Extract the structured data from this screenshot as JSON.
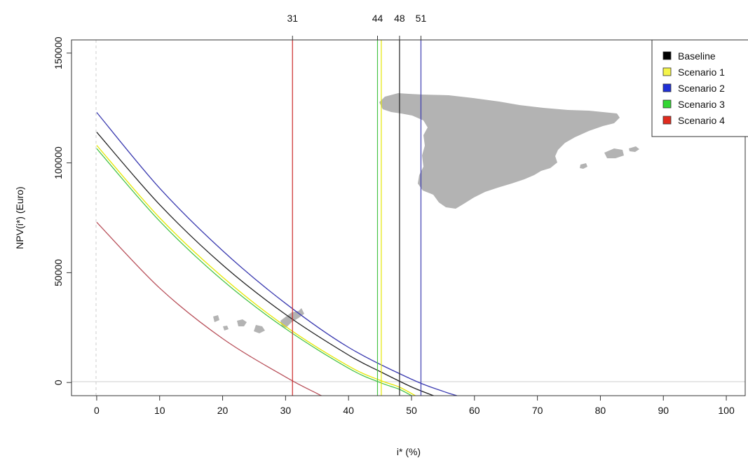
{
  "chart_data": {
    "type": "line",
    "xlabel": "i* (%)",
    "ylabel": "NPV(i*) (Euro)",
    "xlim": [
      -4,
      103
    ],
    "ylim": [
      -6000,
      156000
    ],
    "x_ticks": [
      0,
      10,
      20,
      30,
      40,
      50,
      60,
      70,
      80,
      90,
      100
    ],
    "y_ticks": [
      0,
      50000,
      100000,
      150000
    ],
    "grid": false,
    "zero_line": true,
    "series": [
      {
        "name": "Baseline",
        "color": "#222222",
        "x": [
          0,
          10,
          20,
          30,
          40,
          45,
          50,
          53.5
        ],
        "y": [
          114000,
          81000,
          53500,
          31000,
          12500,
          5000,
          -2000,
          -6000
        ]
      },
      {
        "name": "Scenario 1",
        "color": "#e4e800",
        "x": [
          0,
          10,
          20,
          30,
          40,
          45,
          48,
          50.6
        ],
        "y": [
          108000,
          75000,
          48000,
          25500,
          7500,
          1000,
          -2000,
          -6000
        ]
      },
      {
        "name": "Scenario 2",
        "color": "#3a3ab0",
        "x": [
          0,
          10,
          20,
          30,
          40,
          50,
          55,
          57.2
        ],
        "y": [
          123000,
          88500,
          60000,
          36000,
          16000,
          1500,
          -4000,
          -6000
        ]
      },
      {
        "name": "Scenario 3",
        "color": "#49c449",
        "x": [
          0,
          10,
          20,
          30,
          40,
          45,
          48,
          50
        ],
        "y": [
          106500,
          73500,
          46500,
          24500,
          6500,
          0,
          -3000,
          -6000
        ]
      },
      {
        "name": "Scenario 4",
        "color": "#b8505a",
        "x": [
          0,
          10,
          20,
          30,
          35,
          35.7
        ],
        "y": [
          73000,
          43000,
          20000,
          2500,
          -5000,
          -6000
        ]
      }
    ],
    "vertical_lines": [
      {
        "label": "31",
        "x": 31.1,
        "color": "#cc2b2b"
      },
      {
        "label": "44",
        "x": 44.6,
        "color": "#47c447"
      },
      {
        "label": "",
        "x": 45.2,
        "color": "#e4e800"
      },
      {
        "label": "48",
        "x": 48.1,
        "color": "#222222"
      },
      {
        "label": "51",
        "x": 51.5,
        "color": "#3a3ab0"
      }
    ],
    "legend": {
      "position": "top-right",
      "entries": [
        {
          "label": "Baseline",
          "color": "#000000"
        },
        {
          "label": "Scenario 1",
          "color": "#f4f44a"
        },
        {
          "label": "Scenario 2",
          "color": "#1f2fd6"
        },
        {
          "label": "Scenario 3",
          "color": "#33d633"
        },
        {
          "label": "Scenario 4",
          "color": "#e02b1e"
        }
      ]
    },
    "background_map": {
      "description_icon": "map-of-spain-icon",
      "color": "#b3b3b3"
    }
  }
}
